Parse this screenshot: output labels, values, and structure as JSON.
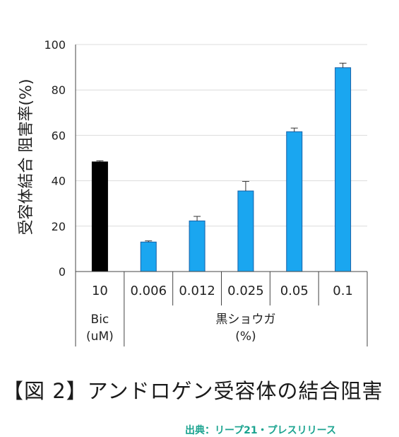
{
  "chart_data": {
    "type": "bar",
    "ylabel": "受容体結合 阻害率(%)",
    "ylim": [
      0,
      100
    ],
    "yticks": [
      0,
      20,
      40,
      60,
      80,
      100
    ],
    "grid": true,
    "categories": [
      "10",
      "0.006",
      "0.012",
      "0.025",
      "0.05",
      "0.1"
    ],
    "values": [
      48.3,
      13.0,
      22.3,
      35.5,
      61.6,
      89.8
    ],
    "errors": [
      0.5,
      0.5,
      2.0,
      4.2,
      1.6,
      2.0
    ],
    "colors": [
      "#000000",
      "#1aa6f0",
      "#1aa6f0",
      "#1aa6f0",
      "#1aa6f0",
      "#1aa6f0"
    ],
    "groups": [
      {
        "label_line1": "Bic",
        "label_line2": "(uM)",
        "count": 1
      },
      {
        "label_line1": "黒ショウガ",
        "label_line2": "(%)",
        "count": 5
      }
    ]
  },
  "caption": "【図 2】アンドロゲン受容体の結合阻害",
  "source": "出典：リープ21・プレスリリース"
}
